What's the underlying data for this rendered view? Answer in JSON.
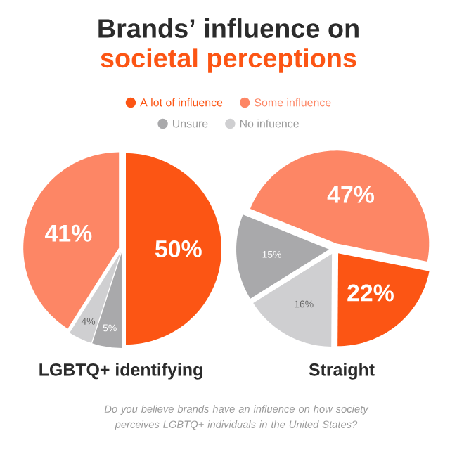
{
  "chart_data": {
    "type": "pie",
    "title": "Brands’ influence on",
    "subtitle": "societal perceptions",
    "legend": "top",
    "categories": [
      "A lot of influence",
      "Some influence",
      "Unsure",
      "No infuence"
    ],
    "colors": [
      "#fc5514",
      "#fd8665",
      "#a9a9ab",
      "#cfcfd1"
    ],
    "series": [
      {
        "name": "LGBTQ+ identifying",
        "values": [
          50,
          41,
          5,
          4
        ],
        "value_labels": [
          "50%",
          "41%",
          "5%",
          "4%"
        ]
      },
      {
        "name": "Straight",
        "values": [
          22,
          47,
          15,
          16
        ],
        "value_labels": [
          "22%",
          "47%",
          "15%",
          "16%"
        ]
      }
    ],
    "annotations": [
      "Do you believe brands have an influence on how society perceives LGBTQ+ individuals in the United States?"
    ]
  }
}
